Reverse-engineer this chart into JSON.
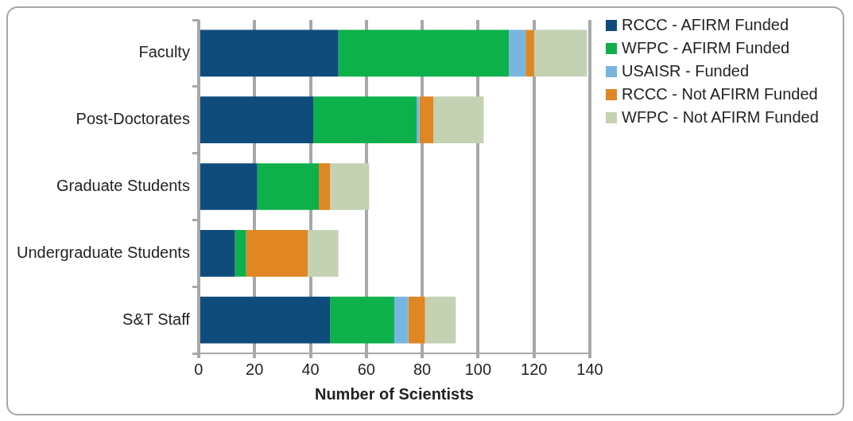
{
  "chart_data": {
    "type": "bar",
    "orientation": "horizontal",
    "stacked": true,
    "xlabel": "Number of Scientists",
    "categories": [
      "Faculty",
      "Post-Doctorates",
      "Graduate Students",
      "Undergraduate Students",
      "S&T Staff"
    ],
    "series": [
      {
        "name": "RCCC - AFIRM Funded",
        "color": "#0f4c7c",
        "values": [
          50,
          41,
          21,
          13,
          47
        ]
      },
      {
        "name": "WFPC - AFIRM Funded",
        "color": "#0db04b",
        "values": [
          61,
          37,
          22,
          4,
          23
        ]
      },
      {
        "name": "USAISR - Funded",
        "color": "#78b6e0",
        "values": [
          6,
          1,
          0,
          0,
          5
        ]
      },
      {
        "name": "RCCC - Not AFIRM Funded",
        "color": "#e08623",
        "values": [
          3,
          5,
          4,
          22,
          6
        ]
      },
      {
        "name": "WFPC - Not AFIRM Funded",
        "color": "#c4d1b3",
        "values": [
          19,
          18,
          14,
          11,
          11
        ]
      }
    ],
    "xlim": [
      0,
      140
    ],
    "xticks": [
      0,
      20,
      40,
      60,
      80,
      100,
      120,
      140
    ],
    "grid": "x",
    "legend": "right"
  }
}
